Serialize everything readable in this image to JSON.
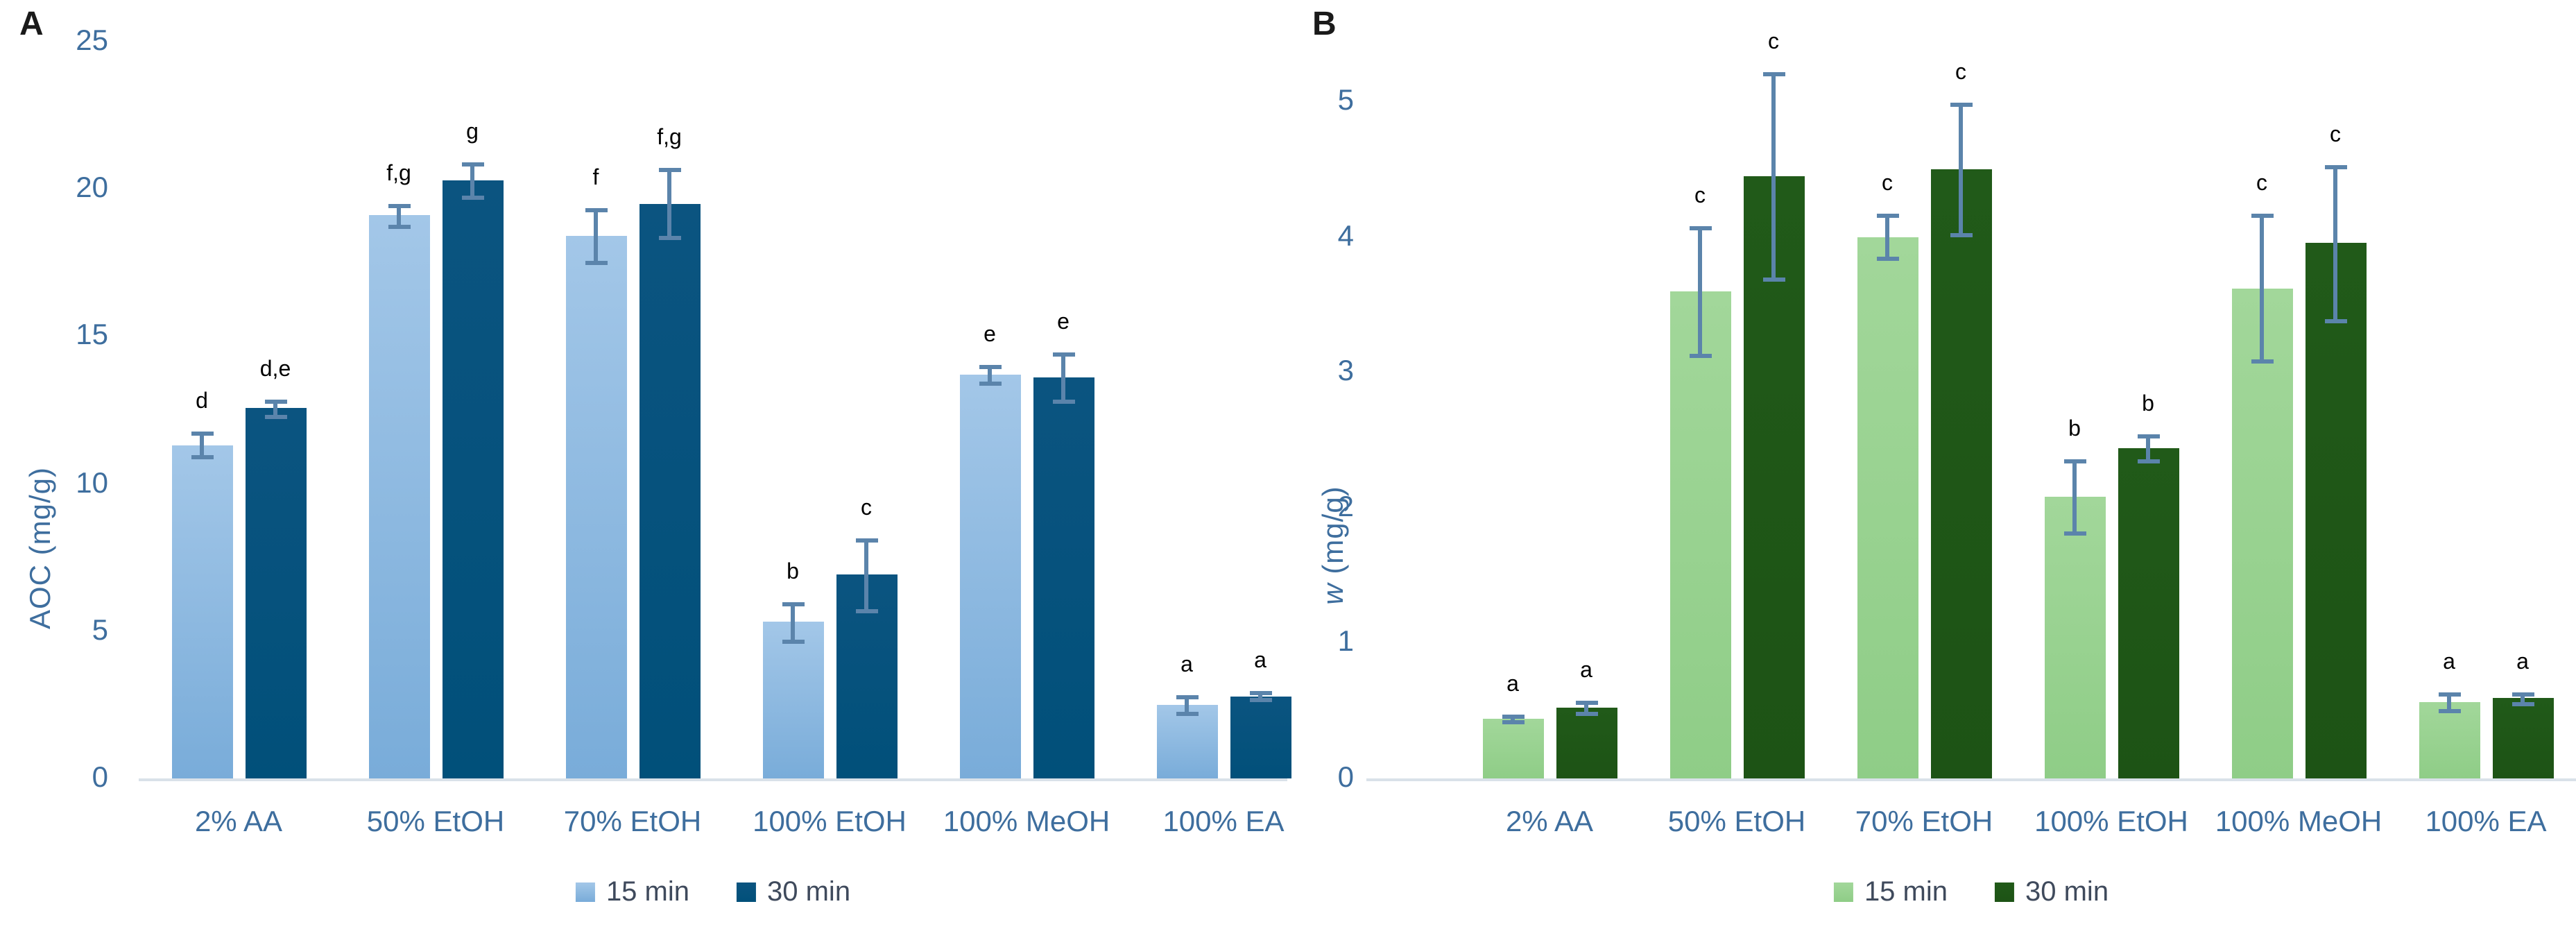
{
  "figure_type": "two-panel grouped bar chart with error bars and significance letters",
  "style": {
    "error_bar_color": "#5B84AB",
    "axis_text_color": "#3E6E9E",
    "legend_text_color": "#3F4A5C",
    "letter_color": "#000000",
    "baseline_color": "#D9E1E9",
    "background": "#ffffff"
  },
  "chart_data": [
    {
      "type": "bar",
      "panel_letter": "A",
      "ylabel": "AOC (mg/g)",
      "ylabel_parts": {
        "italic": "",
        "rest": "AOC (mg/g)"
      },
      "ylim": [
        0,
        25
      ],
      "yticks": [
        0,
        5,
        10,
        15,
        20,
        25
      ],
      "grid": false,
      "legend_position": "bottom",
      "categories": [
        "2% AA",
        "50% EtOH",
        "70% EtOH",
        "100% EtOH",
        "100% MeOH",
        "100% EA"
      ],
      "series": [
        {
          "name": "15 min",
          "color_top": "#A3C7E8",
          "color_bottom": "#79ACD9",
          "values": [
            11.3,
            19.1,
            18.4,
            5.3,
            13.7,
            2.5
          ],
          "errors": [
            0.4,
            0.35,
            0.9,
            0.65,
            0.3,
            0.28
          ],
          "letters": [
            "d",
            "f,g",
            "f",
            "b",
            "e",
            "a"
          ]
        },
        {
          "name": "30 min",
          "color_top": "#0B5480",
          "color_bottom": "#01507A",
          "values": [
            12.55,
            20.3,
            19.5,
            6.9,
            13.6,
            2.8
          ],
          "errors": [
            0.25,
            0.55,
            1.15,
            1.2,
            0.8,
            0.12
          ],
          "letters": [
            "d,e",
            "g",
            "f,g",
            "c",
            "e",
            "a"
          ]
        }
      ]
    },
    {
      "type": "bar",
      "panel_letter": "B",
      "ylabel": "w (mg/g)",
      "ylabel_parts": {
        "italic": "w",
        "rest": " (mg/g)"
      },
      "ylim": [
        0,
        5
      ],
      "yticks": [
        0,
        1,
        2,
        3,
        4,
        5
      ],
      "grid": false,
      "legend_position": "bottom",
      "categories": [
        "2% AA",
        "50% EtOH",
        "70% EtOH",
        "100% EtOH",
        "100% MeOH",
        "100% EA"
      ],
      "series": [
        {
          "name": "15 min",
          "color_top": "#A2D79A",
          "color_bottom": "#8FCD87",
          "values": [
            0.44,
            3.6,
            4.0,
            2.08,
            3.62,
            0.56
          ],
          "errors": [
            0.02,
            0.47,
            0.16,
            0.27,
            0.54,
            0.06
          ],
          "letters": [
            "a",
            "c",
            "c",
            "b",
            "c",
            "a"
          ]
        },
        {
          "name": "30 min",
          "color_top": "#215A19",
          "color_bottom": "#1D5315",
          "values": [
            0.52,
            4.45,
            4.5,
            2.44,
            3.95,
            0.59
          ],
          "errors": [
            0.04,
            0.76,
            0.48,
            0.09,
            0.57,
            0.04
          ],
          "letters": [
            "a",
            "c",
            "c",
            "b",
            "c",
            "a"
          ]
        }
      ]
    }
  ]
}
